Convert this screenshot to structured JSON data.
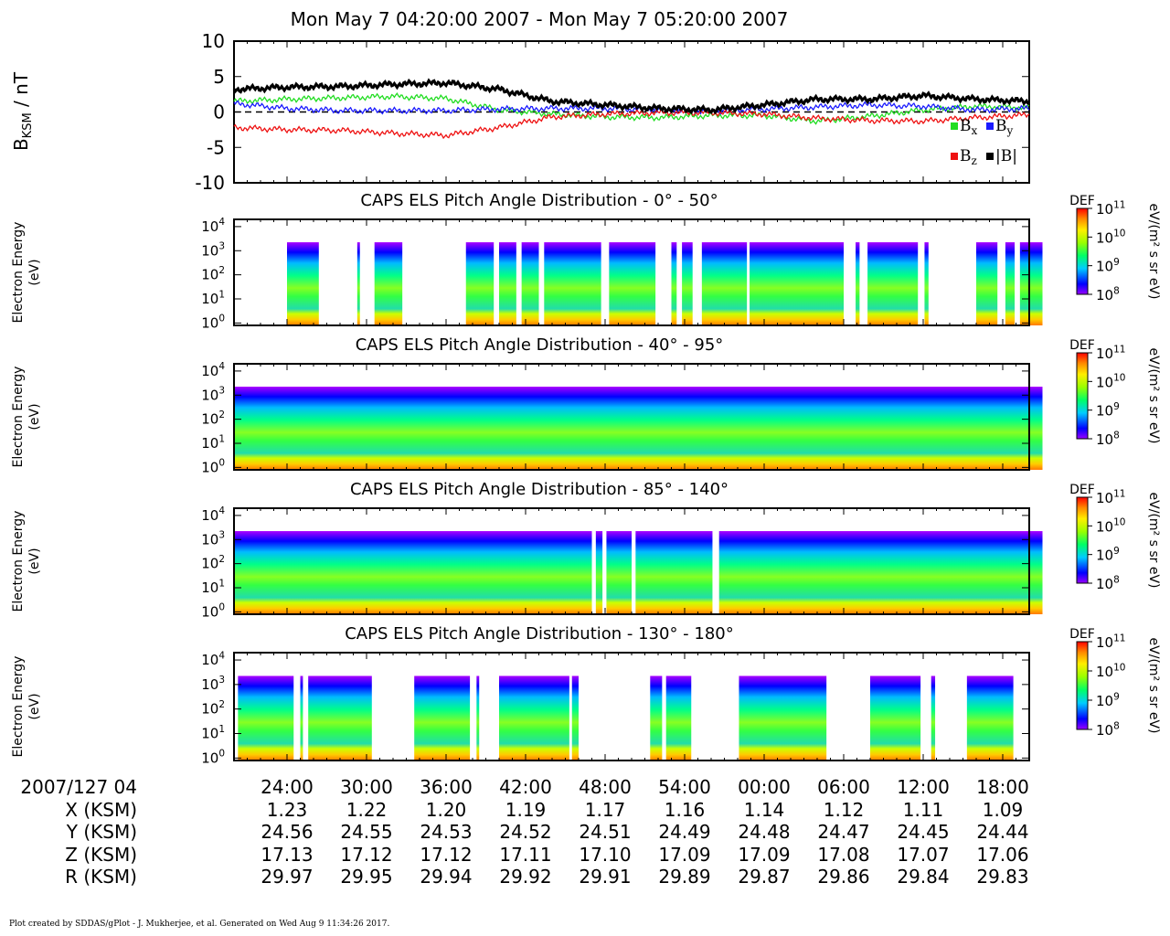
{
  "title": "Mon May 7 04:20:00 2007 - Mon May 7 05:20:00 2007",
  "footer": "Plot created by SDDAS/gPlot - J. Mukherjee, et al.  Generated on Wed Aug 9 11:34:26 2017.",
  "colors": {
    "bx": "#22dd22",
    "by": "#1a1aff",
    "bz": "#ee1111",
    "btot": "#000000",
    "spectrogram_scale": [
      "#9900ff",
      "#0000ff",
      "#00ccff",
      "#00ff66",
      "#99ff00",
      "#ffee00",
      "#ff8800",
      "#ff0000"
    ]
  },
  "chart_data": [
    {
      "type": "line",
      "ylabel": "B",
      "ylabel_sub": "KSM",
      "ylabel_unit": "/ nT",
      "ylim": [
        -10,
        10
      ],
      "yticks": [
        "10",
        "5",
        "0",
        "-5",
        "-10"
      ],
      "ytick_values": [
        10,
        5,
        0,
        -5,
        -10
      ],
      "zero_line": "dashed",
      "legend_placement": "bottom-right",
      "x_minutes": [
        0,
        4,
        8,
        12,
        16,
        20,
        24,
        28,
        32,
        36,
        40,
        44,
        48,
        52,
        56,
        60
      ],
      "series": [
        {
          "name": "B",
          "sub": "x",
          "color_key": "bx",
          "values": [
            1.5,
            1.8,
            2.0,
            2.2,
            1.9,
            0.3,
            -0.3,
            -0.7,
            -0.8,
            -0.5,
            -0.5,
            -1.3,
            -0.6,
            0.3,
            0.8,
            0.6
          ]
        },
        {
          "name": "B",
          "sub": "y",
          "color_key": "by",
          "values": [
            1.2,
            0.5,
            0.2,
            0.2,
            0.2,
            0.4,
            0.5,
            0.5,
            0.3,
            0.1,
            0.4,
            0.7,
            1.0,
            0.8,
            0.3,
            0.5
          ]
        },
        {
          "name": "B",
          "sub": "z",
          "color_key": "bz",
          "values": [
            -2.2,
            -2.5,
            -2.6,
            -3.0,
            -3.3,
            -2.2,
            -0.7,
            -0.3,
            -0.1,
            -0.1,
            -0.3,
            -0.9,
            -1.2,
            -1.3,
            -0.8,
            -0.4
          ]
        },
        {
          "name": "|B|",
          "sub": "",
          "color_key": "btot",
          "values": [
            3.2,
            3.5,
            3.6,
            3.9,
            4.1,
            3.2,
            1.5,
            1.0,
            0.5,
            0.3,
            1.0,
            1.8,
            1.8,
            2.3,
            1.8,
            1.5
          ]
        }
      ]
    },
    {
      "type": "heatmap",
      "title": "CAPS ELS Pitch Angle Distribution - 0° - 50°",
      "ylabel": [
        "Electron Energy",
        "(eV)"
      ],
      "yticks": [
        "10",
        "10",
        "10",
        "10",
        "10"
      ],
      "ytick_exp": [
        "0",
        "1",
        "2",
        "3",
        "4"
      ],
      "ytick_log": [
        0,
        1,
        2,
        3,
        4
      ],
      "colorbar": {
        "label": "DEF",
        "unit": "eV/(m² s sr eV)",
        "ticks": [
          "10",
          "10",
          "10",
          "10"
        ],
        "tick_exp": [
          "11",
          "10",
          "9",
          "8"
        ],
        "tick_log": [
          11,
          10,
          9,
          8
        ]
      },
      "coverage_minutes": [
        [
          4.0,
          6.4
        ],
        [
          9.3,
          9.5
        ],
        [
          10.6,
          12.7
        ],
        [
          17.5,
          19.6
        ],
        [
          20.0,
          21.3
        ],
        [
          21.7,
          23.0
        ],
        [
          23.4,
          27.7
        ],
        [
          28.3,
          31.8
        ],
        [
          33.0,
          33.4
        ],
        [
          33.8,
          34.6
        ],
        [
          35.3,
          38.7
        ],
        [
          38.9,
          46.0
        ],
        [
          46.9,
          47.2
        ],
        [
          47.8,
          51.6
        ],
        [
          52.1,
          52.4
        ],
        [
          56.0,
          57.6
        ],
        [
          58.2,
          58.9
        ],
        [
          59.3,
          61.0
        ]
      ]
    },
    {
      "type": "heatmap",
      "title": "CAPS ELS Pitch Angle Distribution - 40° - 95°",
      "ylabel": [
        "Electron Energy",
        "(eV)"
      ],
      "yticks": [
        "10",
        "10",
        "10",
        "10",
        "10"
      ],
      "ytick_exp": [
        "0",
        "1",
        "2",
        "3",
        "4"
      ],
      "ytick_log": [
        0,
        1,
        2,
        3,
        4
      ],
      "colorbar": {
        "label": "DEF",
        "unit": "eV/(m² s sr eV)",
        "ticks": [
          "10",
          "10",
          "10",
          "10"
        ],
        "tick_exp": [
          "11",
          "10",
          "9",
          "8"
        ],
        "tick_log": [
          11,
          10,
          9,
          8
        ]
      },
      "coverage_minutes": [
        [
          0,
          61.0
        ]
      ]
    },
    {
      "type": "heatmap",
      "title": "CAPS ELS Pitch Angle Distribution - 85° - 140°",
      "ylabel": [
        "Electron Energy",
        "(eV)"
      ],
      "yticks": [
        "10",
        "10",
        "10",
        "10",
        "10"
      ],
      "ytick_exp": [
        "0",
        "1",
        "2",
        "3",
        "4"
      ],
      "ytick_log": [
        0,
        1,
        2,
        3,
        4
      ],
      "colorbar": {
        "label": "DEF",
        "unit": "eV/(m² s sr eV)",
        "ticks": [
          "10",
          "10",
          "10",
          "10"
        ],
        "tick_exp": [
          "11",
          "10",
          "9",
          "8"
        ],
        "tick_log": [
          11,
          10,
          9,
          8
        ]
      },
      "coverage_minutes": [
        [
          0,
          27.0
        ],
        [
          27.3,
          27.8
        ],
        [
          28.1,
          30.0
        ],
        [
          30.3,
          36.1
        ],
        [
          36.6,
          61.0
        ]
      ]
    },
    {
      "type": "heatmap",
      "title": "CAPS ELS Pitch Angle Distribution - 130° - 180°",
      "ylabel": [
        "Electron Energy",
        "(eV)"
      ],
      "yticks": [
        "10",
        "10",
        "10",
        "10",
        "10"
      ],
      "ytick_exp": [
        "0",
        "1",
        "2",
        "3",
        "4"
      ],
      "ytick_log": [
        0,
        1,
        2,
        3,
        4
      ],
      "colorbar": {
        "label": "DEF",
        "unit": "eV/(m² s sr eV)",
        "ticks": [
          "10",
          "10",
          "10",
          "10"
        ],
        "tick_exp": [
          "11",
          "10",
          "9",
          "8"
        ],
        "tick_log": [
          11,
          10,
          9,
          8
        ]
      },
      "coverage_minutes": [
        [
          0.3,
          4.5
        ],
        [
          5.0,
          5.2
        ],
        [
          5.6,
          10.4
        ],
        [
          13.6,
          17.8
        ],
        [
          18.3,
          18.5
        ],
        [
          20.0,
          25.3
        ],
        [
          25.5,
          26.0
        ],
        [
          31.4,
          32.3
        ],
        [
          32.6,
          34.5
        ],
        [
          38.1,
          44.7
        ],
        [
          48.0,
          51.8
        ],
        [
          52.6,
          52.9
        ],
        [
          55.3,
          58.8
        ]
      ]
    }
  ],
  "x_axis": {
    "tick_minutes": [
      4,
      10,
      16,
      22,
      28,
      34,
      40,
      46,
      52,
      58
    ],
    "header": "2007/127 04",
    "rows": [
      {
        "label": "2007/127 04",
        "values": [
          "24:00",
          "30:00",
          "36:00",
          "42:00",
          "48:00",
          "54:00",
          "00:00",
          "06:00",
          "12:00",
          "18:00"
        ]
      },
      {
        "label": "X (KSM)",
        "values": [
          "1.23",
          "1.22",
          "1.20",
          "1.19",
          "1.17",
          "1.16",
          "1.14",
          "1.12",
          "1.11",
          "1.09"
        ]
      },
      {
        "label": "Y (KSM)",
        "values": [
          "24.56",
          "24.55",
          "24.53",
          "24.52",
          "24.51",
          "24.49",
          "24.48",
          "24.47",
          "24.45",
          "24.44"
        ]
      },
      {
        "label": "Z (KSM)",
        "values": [
          "17.13",
          "17.12",
          "17.12",
          "17.11",
          "17.10",
          "17.09",
          "17.09",
          "17.08",
          "17.07",
          "17.06"
        ]
      },
      {
        "label": "R (KSM)",
        "values": [
          "29.97",
          "29.95",
          "29.94",
          "29.92",
          "29.91",
          "29.89",
          "29.87",
          "29.86",
          "29.84",
          "29.83"
        ]
      }
    ]
  }
}
